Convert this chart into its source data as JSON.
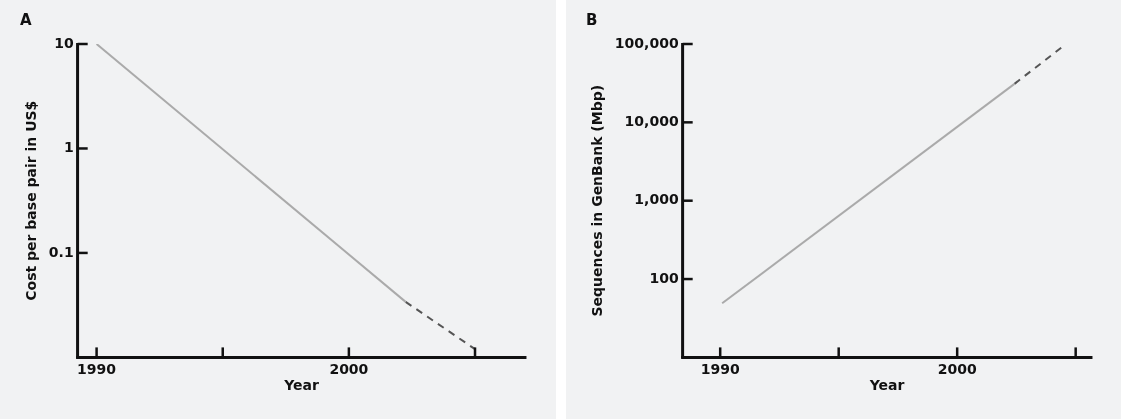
{
  "chart_data": [
    {
      "type": "line",
      "title": "A",
      "xlabel": "Year",
      "ylabel": "Cost per base pair in US$",
      "log": "y",
      "xlim": [
        "1989-04",
        "2007"
      ],
      "xticks": [
        "1990",
        {
          "value": "1995",
          "label": null
        },
        "2000",
        {
          "value": "2005",
          "label": null
        }
      ],
      "ylim": [
        0.01,
        10
      ],
      "yticks": [
        10,
        1,
        0.1
      ],
      "grid": false,
      "legend": false,
      "series": [
        {
          "x": [
            "1990",
            "2002-04"
          ],
          "values": [
            10,
            0.034
          ],
          "color": "#aaaaaa",
          "line_style": "solid"
        },
        {
          "x": [
            "2002-04",
            "2005"
          ],
          "values": [
            0.034,
            0.012
          ],
          "color": "#555555",
          "line_style": "dashed"
        }
      ]
    },
    {
      "type": "line",
      "title": "B",
      "xlabel": "Year",
      "ylabel": "Sequences in GenBank (Mbp)",
      "log": "y",
      "xlim": [
        "1988-06",
        "2005-09"
      ],
      "xticks": [
        "1990",
        {
          "value": "1995",
          "label": null
        },
        "2000",
        {
          "value": "2005",
          "label": null
        }
      ],
      "ylim": [
        10,
        100000
      ],
      "yticks": [
        {
          "value": 100000,
          "label": "100,000"
        },
        {
          "value": 10000,
          "label": "10,000"
        },
        {
          "value": 1000,
          "label": "1,000"
        },
        100
      ],
      "grid": false,
      "legend": false,
      "series": [
        {
          "x": [
            "1990-02",
            "2002-06"
          ],
          "values": [
            49,
            31000
          ],
          "color": "#aaaaaa",
          "line_style": "solid"
        },
        {
          "x": [
            "2002-06",
            "2004-07"
          ],
          "values": [
            31000,
            95000
          ],
          "color": "#555555",
          "line_style": "dashed"
        }
      ]
    }
  ]
}
